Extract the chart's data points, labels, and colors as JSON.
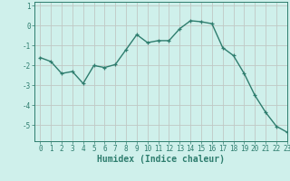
{
  "x": [
    0,
    1,
    2,
    3,
    4,
    5,
    6,
    7,
    8,
    9,
    10,
    11,
    12,
    13,
    14,
    15,
    16,
    17,
    18,
    19,
    20,
    21,
    22,
    23
  ],
  "y": [
    -1.6,
    -1.8,
    -2.4,
    -2.3,
    -2.9,
    -2.0,
    -2.1,
    -1.95,
    -1.2,
    -0.45,
    -0.85,
    -0.75,
    -0.75,
    -0.15,
    0.25,
    0.2,
    0.1,
    -1.1,
    -1.5,
    -2.4,
    -3.5,
    -4.35,
    -5.05,
    -5.35
  ],
  "line_color": "#2e7d6e",
  "marker": "+",
  "markersize": 3.5,
  "linewidth": 1.0,
  "bg_color": "#cff0eb",
  "grid_color": "#c0c8c4",
  "xlabel": "Humidex (Indice chaleur)",
  "xlim": [
    -0.5,
    23
  ],
  "ylim": [
    -5.8,
    1.2
  ],
  "yticks": [
    1,
    0,
    -1,
    -2,
    -3,
    -4,
    -5
  ],
  "xticks": [
    0,
    1,
    2,
    3,
    4,
    5,
    6,
    7,
    8,
    9,
    10,
    11,
    12,
    13,
    14,
    15,
    16,
    17,
    18,
    19,
    20,
    21,
    22,
    23
  ],
  "tick_fontsize": 5.5,
  "xlabel_fontsize": 7,
  "axes_color": "#2e7d6e",
  "label_color": "#2e7d6e"
}
